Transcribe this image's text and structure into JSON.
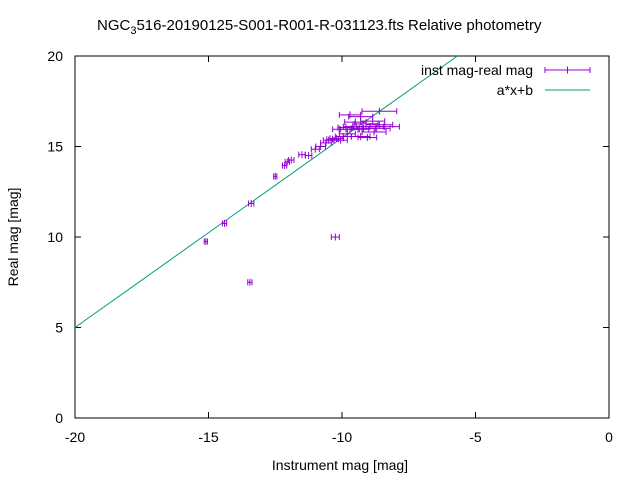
{
  "chart_data": {
    "type": "scatter",
    "title_main_a": "NGC",
    "title_sub": "3",
    "title_main_b": "516-20190125-S001-R001-R-031123.fts Relative photometry",
    "xlabel": "Instrument mag [mag]",
    "ylabel": "Real mag [mag]",
    "xlim": [
      -20,
      0
    ],
    "ylim": [
      0,
      20
    ],
    "x_ticks": [
      "-20",
      "-15",
      "-10",
      "-5",
      "0"
    ],
    "y_ticks": [
      "0",
      "5",
      "10",
      "15",
      "20"
    ],
    "grid": false,
    "legend_position": "top-right",
    "colors": {
      "points": "#9400d3",
      "fit": "#009e73",
      "axis": "#000000"
    },
    "series": [
      {
        "name": "inst mag-real mag",
        "kind": "points_with_xerror",
        "points": [
          {
            "x": -15.1,
            "y": 9.75,
            "xerr": 0.06
          },
          {
            "x": -14.4,
            "y": 10.75,
            "xerr": 0.08
          },
          {
            "x": -13.4,
            "y": 11.85,
            "xerr": 0.1
          },
          {
            "x": -13.45,
            "y": 7.5,
            "xerr": 0.08
          },
          {
            "x": -12.5,
            "y": 13.35,
            "xerr": 0.06
          },
          {
            "x": -12.15,
            "y": 13.95,
            "xerr": 0.08
          },
          {
            "x": -12.05,
            "y": 14.15,
            "xerr": 0.08
          },
          {
            "x": -11.9,
            "y": 14.25,
            "xerr": 0.1
          },
          {
            "x": -11.5,
            "y": 14.55,
            "xerr": 0.12
          },
          {
            "x": -11.25,
            "y": 14.5,
            "xerr": 0.12
          },
          {
            "x": -11.0,
            "y": 14.85,
            "xerr": 0.15
          },
          {
            "x": -10.8,
            "y": 15.0,
            "xerr": 0.18
          },
          {
            "x": -10.6,
            "y": 15.2,
            "xerr": 0.2
          },
          {
            "x": -10.5,
            "y": 15.35,
            "xerr": 0.2
          },
          {
            "x": -10.35,
            "y": 15.4,
            "xerr": 0.22
          },
          {
            "x": -10.2,
            "y": 15.45,
            "xerr": 0.25
          },
          {
            "x": -10.05,
            "y": 15.35,
            "xerr": 0.25
          },
          {
            "x": -9.95,
            "y": 15.55,
            "xerr": 0.3
          },
          {
            "x": -9.8,
            "y": 15.7,
            "xerr": 0.3
          },
          {
            "x": -9.7,
            "y": 15.95,
            "xerr": 0.35
          },
          {
            "x": -9.6,
            "y": 16.1,
            "xerr": 0.35
          },
          {
            "x": -9.5,
            "y": 16.35,
            "xerr": 0.4
          },
          {
            "x": -9.4,
            "y": 15.95,
            "xerr": 0.4
          },
          {
            "x": -9.3,
            "y": 15.55,
            "xerr": 0.35
          },
          {
            "x": -9.2,
            "y": 16.0,
            "xerr": 0.45
          },
          {
            "x": -9.1,
            "y": 16.25,
            "xerr": 0.45
          },
          {
            "x": -9.05,
            "y": 15.5,
            "xerr": 0.35
          },
          {
            "x": -8.95,
            "y": 16.1,
            "xerr": 0.5
          },
          {
            "x": -8.85,
            "y": 16.4,
            "xerr": 0.45
          },
          {
            "x": -8.8,
            "y": 15.8,
            "xerr": 0.45
          },
          {
            "x": -8.7,
            "y": 16.0,
            "xerr": 0.5
          },
          {
            "x": -8.6,
            "y": 16.2,
            "xerr": 0.5
          },
          {
            "x": -9.7,
            "y": 16.75,
            "xerr": 0.4
          },
          {
            "x": -9.3,
            "y": 16.65,
            "xerr": 0.45
          },
          {
            "x": -8.6,
            "y": 16.95,
            "xerr": 0.65
          },
          {
            "x": -8.4,
            "y": 16.1,
            "xerr": 0.55
          },
          {
            "x": -10.25,
            "y": 10.0,
            "xerr": 0.15
          },
          {
            "x": -9.85,
            "y": 16.05,
            "xerr": 0.3
          },
          {
            "x": -10.1,
            "y": 15.95,
            "xerr": 0.25
          }
        ]
      },
      {
        "name": "a*x+b",
        "kind": "line",
        "x": [
          -20,
          -5.68
        ],
        "y": [
          5.0,
          20.0
        ]
      }
    ]
  }
}
